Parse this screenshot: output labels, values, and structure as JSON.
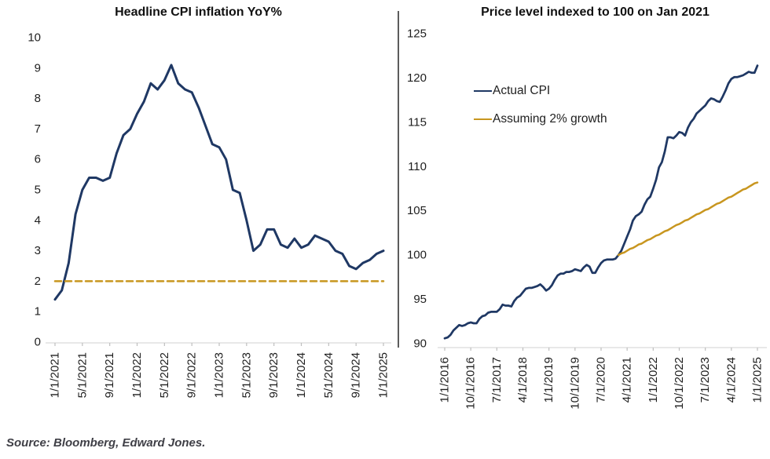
{
  "page": {
    "source_note": "Source: Bloomberg, Edward Jones."
  },
  "colors": {
    "navy": "#1f3864",
    "gold": "#c8961f",
    "axis_line": "#d9d9d9",
    "tick_mark": "#bfbfbf",
    "tick_text": "#1f1f1f",
    "divider": "#333333",
    "background": "#ffffff"
  },
  "chart_data": [
    {
      "type": "line",
      "title": "Headline CPI inflation YoY%",
      "x_unit": "monthly, months from Jan 2021",
      "x_start": 0,
      "x_end": 48,
      "y_min": 0,
      "y_max": 10,
      "grid": false,
      "y_tick_values": [
        0,
        1,
        2,
        3,
        4,
        5,
        6,
        7,
        8,
        9,
        10
      ],
      "y_tick_labels": [
        "0",
        "1",
        "2",
        "3",
        "4",
        "5",
        "6",
        "7",
        "8",
        "9",
        "10"
      ],
      "x_tick_months": [
        0,
        4,
        8,
        12,
        16,
        20,
        24,
        28,
        32,
        36,
        40,
        44,
        48
      ],
      "x_tick_labels": [
        "1/1/2021",
        "5/1/2021",
        "9/1/2021",
        "1/1/2022",
        "5/1/2022",
        "9/1/2022",
        "1/1/2023",
        "5/1/2023",
        "9/1/2023",
        "1/1/2024",
        "5/1/2024",
        "9/1/2024",
        "1/1/2025"
      ],
      "series": [
        {
          "name": "Headline CPI inflation YoY%",
          "color_key": "navy",
          "width": 3,
          "dash": null,
          "start_month": 0,
          "values": [
            1.4,
            1.7,
            2.6,
            4.2,
            5.0,
            5.4,
            5.4,
            5.3,
            5.4,
            6.2,
            6.8,
            7.0,
            7.5,
            7.9,
            8.5,
            8.3,
            8.6,
            9.1,
            8.5,
            8.3,
            8.2,
            7.7,
            7.1,
            6.5,
            6.4,
            6.0,
            5.0,
            4.9,
            4.0,
            3.0,
            3.2,
            3.7,
            3.7,
            3.2,
            3.1,
            3.4,
            3.1,
            3.2,
            3.5,
            3.4,
            3.3,
            3.0,
            2.9,
            2.5,
            2.4,
            2.6,
            2.7,
            2.9,
            3.0
          ]
        },
        {
          "name": "2% reference level",
          "color_key": "gold",
          "width": 2.5,
          "dash": "8 5",
          "constant": 2,
          "from_month": 0,
          "to_month": 48
        }
      ],
      "legend": []
    },
    {
      "type": "line",
      "title": "Price level indexed to 100 on Jan 2021",
      "x_unit": "monthly, months from Jan 2016",
      "x_start": 0,
      "x_end": 108,
      "y_min": 90,
      "y_max": 125,
      "grid": false,
      "y_tick_values": [
        90,
        95,
        100,
        105,
        110,
        115,
        120,
        125
      ],
      "y_tick_labels": [
        "90",
        "95",
        "100",
        "105",
        "110",
        "115",
        "120",
        "125"
      ],
      "x_tick_months": [
        0,
        9,
        18,
        27,
        36,
        45,
        54,
        63,
        72,
        81,
        90,
        99,
        108
      ],
      "x_tick_labels": [
        "1/1/2016",
        "10/1/2016",
        "7/1/2017",
        "4/1/2018",
        "1/1/2019",
        "10/1/2019",
        "7/1/2020",
        "4/1/2021",
        "1/1/2022",
        "10/1/2022",
        "7/1/2023",
        "4/1/2024",
        "1/1/2025"
      ],
      "series": [
        {
          "name": "Actual CPI",
          "color_key": "navy",
          "width": 2.75,
          "dash": null,
          "start_month": 0,
          "values": [
            90.6,
            90.7,
            91.0,
            91.5,
            91.8,
            92.1,
            92.0,
            92.1,
            92.3,
            92.4,
            92.3,
            92.3,
            92.8,
            93.1,
            93.2,
            93.5,
            93.6,
            93.6,
            93.6,
            93.9,
            94.4,
            94.3,
            94.3,
            94.2,
            94.8,
            95.2,
            95.4,
            95.8,
            96.2,
            96.3,
            96.3,
            96.4,
            96.5,
            96.7,
            96.4,
            96.0,
            96.2,
            96.6,
            97.2,
            97.7,
            97.9,
            97.9,
            98.1,
            98.1,
            98.2,
            98.4,
            98.3,
            98.2,
            98.6,
            98.9,
            98.7,
            98.0,
            98.0,
            98.6,
            99.1,
            99.4,
            99.5,
            99.5,
            99.5,
            99.6,
            100.0,
            100.5,
            101.3,
            102.1,
            102.9,
            103.9,
            104.4,
            104.6,
            104.9,
            105.7,
            106.3,
            106.6,
            107.5,
            108.5,
            109.9,
            110.5,
            111.7,
            113.3,
            113.3,
            113.2,
            113.5,
            113.9,
            113.8,
            113.5,
            114.4,
            115.0,
            115.4,
            116.0,
            116.3,
            116.6,
            116.9,
            117.4,
            117.7,
            117.6,
            117.4,
            117.3,
            117.9,
            118.6,
            119.4,
            119.9,
            120.1,
            120.1,
            120.2,
            120.3,
            120.5,
            120.7,
            120.6,
            120.6,
            121.4
          ]
        },
        {
          "name": "Assuming 2% growth",
          "color_key": "gold",
          "width": 2.5,
          "dash": null,
          "start_month": 60,
          "values": [
            100.0,
            100.2,
            100.3,
            100.5,
            100.7,
            100.8,
            101.0,
            101.2,
            101.3,
            101.5,
            101.7,
            101.8,
            102.0,
            102.2,
            102.3,
            102.5,
            102.7,
            102.8,
            103.0,
            103.2,
            103.4,
            103.5,
            103.7,
            103.9,
            104.0,
            104.2,
            104.4,
            104.6,
            104.7,
            104.9,
            105.1,
            105.2,
            105.4,
            105.6,
            105.8,
            105.9,
            106.1,
            106.3,
            106.5,
            106.6,
            106.8,
            107.0,
            107.2,
            107.4,
            107.5,
            107.7,
            107.9,
            108.1,
            108.2
          ]
        }
      ],
      "legend": [
        {
          "label": "Actual CPI",
          "color_key": "navy"
        },
        {
          "label": "Assuming 2% growth",
          "color_key": "gold"
        }
      ],
      "legend_position": "upper-left-inside"
    }
  ]
}
